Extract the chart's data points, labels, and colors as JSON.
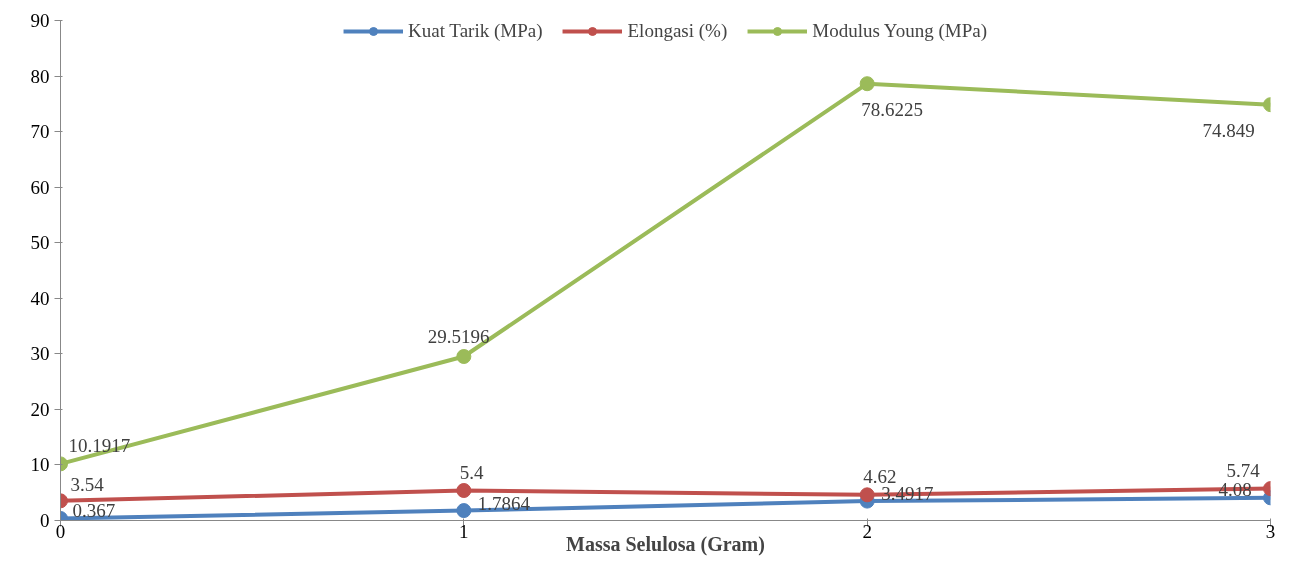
{
  "chart_data": {
    "type": "line",
    "xlabel": "Massa Selulosa (Gram)",
    "x": [
      0,
      1,
      2,
      3
    ],
    "series": [
      {
        "name": "Kuat Tarik (MPa)",
        "color": "#4f81bd",
        "values": [
          0.367,
          1.7864,
          3.4917,
          4.08
        ]
      },
      {
        "name": "Elongasi (%)",
        "color": "#c0504d",
        "values": [
          3.54,
          5.4,
          4.62,
          5.74
        ]
      },
      {
        "name": "Modulus Young (MPa)",
        "color": "#9bbb59",
        "values": [
          10.1917,
          29.5196,
          78.6225,
          74.849
        ]
      }
    ],
    "xlim": [
      0,
      3
    ],
    "xticks": [
      0,
      1,
      2,
      3
    ],
    "ylim": [
      0,
      90
    ],
    "yticks": [
      0,
      10,
      20,
      30,
      40,
      50,
      60,
      70,
      80,
      90
    ],
    "data_labels": true,
    "legend": "top",
    "grid": false,
    "marker": "circle",
    "line_style": "solid"
  }
}
